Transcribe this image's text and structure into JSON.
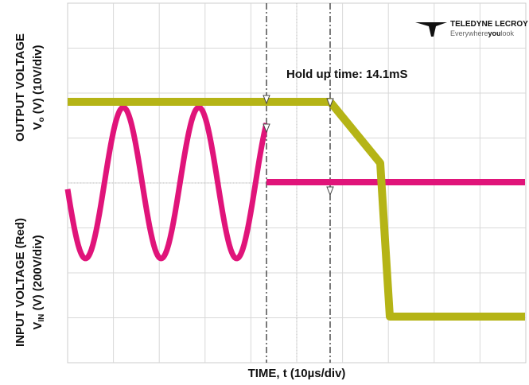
{
  "y_axis": {
    "output": {
      "line1": "OUTPUT VOLTAGE",
      "line2_v": "V",
      "line2_sub": "o",
      "line2_rest": " (V) (10V/div)"
    },
    "input": {
      "line1": "INPUT VOLTAGE (Red)",
      "line2_v": "V",
      "line2_sub": "IN",
      "line2_rest": " (V) (200V/div)"
    }
  },
  "x_axis": {
    "label": "TIME, t (10µs/div)"
  },
  "annotation": "Hold up time: 14.1mS",
  "logo": {
    "name": "TELEDYNE LECROY",
    "tag_a": "Everywhere",
    "tag_b": "you",
    "tag_c": "look"
  }
}
